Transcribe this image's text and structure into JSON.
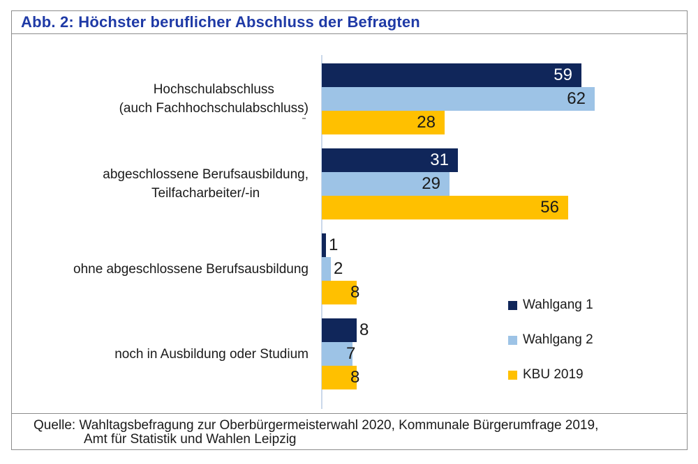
{
  "title": "Abb. 2: Höchster beruflicher Abschluss der Befragten",
  "source": {
    "line1": "Quelle: Wahltagsbefragung zur Oberbürgermeisterwahl 2020, Kommunale Bürgerumfrage 2019,",
    "line2": "Amt für Statistik und Wahlen Leipzig"
  },
  "colors": {
    "title_blue": "#1f3aa6",
    "frame_border": "#8c8c8c",
    "axis_line": "#cbd8ea",
    "series_wahlgang1": "#10265a",
    "series_wahlgang2": "#9dc3e6",
    "series_kbu2019": "#ffc000",
    "value_text_dark": "#1a1a1a",
    "value_text_light": "#ffffff"
  },
  "chart_data": {
    "type": "bar",
    "orientation": "horizontal",
    "title": "Abb. 2: Höchster beruflicher Abschluss der Befragten",
    "xlabel": "",
    "ylabel": "",
    "xlim": [
      0,
      62
    ],
    "grid": false,
    "legend_position": "right-bottom",
    "categories": [
      [
        "Hochschulabschluss",
        "(auch Fachhochschulabschluss)"
      ],
      [
        "abgeschlossene Berufsausbildung,",
        "Teilfacharbeiter/-in"
      ],
      [
        "ohne abgeschlossene Berufsausbildung"
      ],
      [
        "noch in Ausbildung oder Studium"
      ]
    ],
    "series": [
      {
        "name": "Wahlgang 1",
        "color": "#10265a",
        "values": [
          59,
          31,
          1,
          8
        ],
        "label_placements": [
          "inside",
          "inside",
          "outside",
          "outside"
        ],
        "label_colors": [
          "#ffffff",
          "#ffffff",
          "#1a1a1a",
          "#1a1a1a"
        ]
      },
      {
        "name": "Wahlgang 2",
        "color": "#9dc3e6",
        "values": [
          62,
          29,
          2,
          7
        ],
        "label_placements": [
          "inside",
          "inside",
          "outside",
          "edge"
        ],
        "label_colors": [
          "#1a1a1a",
          "#1a1a1a",
          "#1a1a1a",
          "#1a1a1a"
        ]
      },
      {
        "name": "KBU 2019",
        "color": "#ffc000",
        "values": [
          28,
          56,
          8,
          8
        ],
        "label_placements": [
          "inside",
          "inside",
          "edge",
          "edge"
        ],
        "label_colors": [
          "#1a1a1a",
          "#1a1a1a",
          "#1a1a1a",
          "#1a1a1a"
        ]
      }
    ],
    "legend": [
      "Wahlgang 1",
      "Wahlgang 2",
      "KBU 2019"
    ]
  }
}
